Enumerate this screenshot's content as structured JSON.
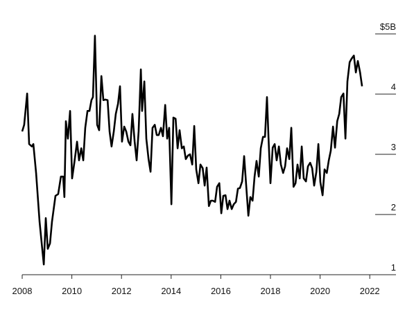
{
  "chart_data": {
    "type": "line",
    "x": [
      2008.0,
      2008.08,
      2008.2,
      2008.28,
      2008.39,
      2008.45,
      2008.56,
      2008.7,
      2008.87,
      2008.95,
      2009.03,
      2009.12,
      2009.2,
      2009.34,
      2009.45,
      2009.56,
      2009.65,
      2009.7,
      2009.76,
      2009.84,
      2009.93,
      2010.01,
      2010.1,
      2010.21,
      2010.29,
      2010.38,
      2010.46,
      2010.54,
      2010.63,
      2010.71,
      2010.79,
      2010.85,
      2010.93,
      2011.02,
      2011.1,
      2011.19,
      2011.27,
      2011.35,
      2011.44,
      2011.52,
      2011.6,
      2011.69,
      2011.77,
      2011.86,
      2011.94,
      2012.02,
      2012.11,
      2012.19,
      2012.28,
      2012.36,
      2012.44,
      2012.53,
      2012.61,
      2012.69,
      2012.78,
      2012.83,
      2012.92,
      2013.0,
      2013.09,
      2013.17,
      2013.25,
      2013.34,
      2013.42,
      2013.5,
      2013.59,
      2013.67,
      2013.76,
      2013.84,
      2013.92,
      2014.01,
      2014.09,
      2014.18,
      2014.26,
      2014.34,
      2014.43,
      2014.51,
      2014.59,
      2014.68,
      2014.76,
      2014.85,
      2014.93,
      2015.01,
      2015.1,
      2015.18,
      2015.27,
      2015.35,
      2015.43,
      2015.52,
      2015.6,
      2015.68,
      2015.77,
      2015.85,
      2015.94,
      2016.02,
      2016.1,
      2016.19,
      2016.27,
      2016.35,
      2016.44,
      2016.52,
      2016.61,
      2016.69,
      2016.77,
      2016.86,
      2016.94,
      2017.03,
      2017.11,
      2017.19,
      2017.28,
      2017.36,
      2017.44,
      2017.53,
      2017.61,
      2017.7,
      2017.78,
      2017.86,
      2017.92,
      2018.0,
      2018.09,
      2018.17,
      2018.25,
      2018.34,
      2018.42,
      2018.51,
      2018.59,
      2018.67,
      2018.76,
      2018.84,
      2018.93,
      2019.01,
      2019.09,
      2019.18,
      2019.26,
      2019.34,
      2019.43,
      2019.51,
      2019.6,
      2019.68,
      2019.76,
      2019.85,
      2019.93,
      2020.01,
      2020.1,
      2020.18,
      2020.27,
      2020.35,
      2020.43,
      2020.52,
      2020.6,
      2020.69,
      2020.77,
      2020.85,
      2020.94,
      2021.02,
      2021.1,
      2021.19,
      2021.27,
      2021.36,
      2021.44,
      2021.52,
      2021.61,
      2021.69
    ],
    "series": [
      {
        "color": "#000000",
        "values": [
          3.38,
          3.49,
          4.01,
          3.17,
          3.13,
          3.17,
          2.69,
          1.88,
          1.17,
          1.94,
          1.43,
          1.52,
          1.88,
          2.31,
          2.34,
          2.63,
          2.63,
          2.29,
          3.55,
          3.26,
          3.72,
          2.6,
          2.86,
          3.21,
          2.9,
          3.1,
          2.9,
          3.44,
          3.72,
          3.72,
          3.9,
          3.95,
          4.97,
          3.49,
          3.4,
          4.3,
          3.9,
          3.91,
          3.9,
          3.38,
          3.13,
          3.38,
          3.67,
          3.84,
          4.13,
          3.21,
          3.46,
          3.38,
          3.21,
          3.15,
          3.67,
          3.21,
          2.9,
          3.38,
          4.41,
          3.72,
          4.21,
          3.26,
          2.92,
          2.71,
          3.44,
          3.49,
          3.32,
          3.32,
          3.44,
          3.3,
          3.82,
          3.26,
          3.44,
          2.17,
          3.61,
          3.59,
          3.1,
          3.4,
          3.1,
          3.13,
          2.92,
          2.98,
          3.0,
          2.83,
          3.47,
          2.75,
          2.52,
          2.83,
          2.77,
          2.48,
          2.78,
          2.14,
          2.23,
          2.23,
          2.21,
          2.46,
          2.52,
          2.02,
          2.31,
          2.32,
          2.09,
          2.23,
          2.09,
          2.17,
          2.21,
          2.43,
          2.44,
          2.55,
          2.97,
          2.44,
          1.98,
          2.29,
          2.23,
          2.63,
          2.89,
          2.63,
          3.1,
          3.29,
          3.29,
          3.95,
          3.29,
          2.52,
          3.11,
          3.17,
          2.9,
          3.13,
          2.83,
          2.69,
          2.8,
          3.1,
          2.92,
          3.44,
          2.46,
          2.52,
          2.83,
          2.6,
          3.13,
          2.6,
          2.55,
          2.8,
          2.86,
          2.77,
          2.48,
          2.71,
          3.17,
          2.54,
          2.32,
          2.75,
          2.69,
          2.9,
          3.06,
          3.46,
          3.11,
          3.55,
          3.67,
          3.95,
          4.01,
          3.26,
          4.21,
          4.53,
          4.59,
          4.64,
          4.36,
          4.55,
          4.36,
          4.13
        ]
      }
    ],
    "xlim": [
      2008,
      2023
    ],
    "xticks": [
      2008,
      2010,
      2012,
      2014,
      2016,
      2018,
      2020,
      2022
    ],
    "ylim": [
      1,
      5
    ],
    "yticks": [
      {
        "value": 5,
        "label": "$5B"
      },
      4,
      3,
      2,
      1
    ]
  }
}
